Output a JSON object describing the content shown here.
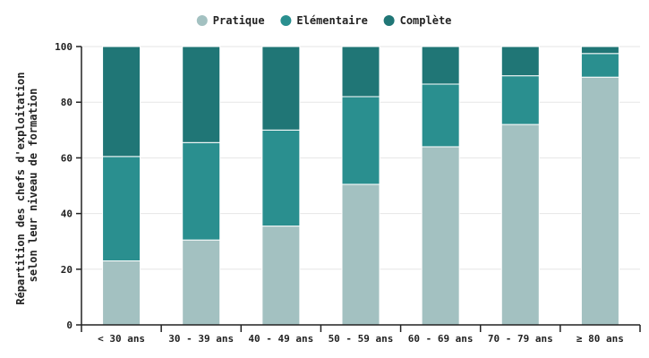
{
  "chart_data": {
    "type": "bar",
    "stacked": true,
    "categories": [
      "< 30 ans",
      "30 - 39 ans",
      "40 - 49 ans",
      "50 - 59 ans",
      "60 - 69 ans",
      "70 - 79 ans",
      "≥ 80 ans"
    ],
    "series": [
      {
        "name": "Pratique",
        "color": "#a3c1c1",
        "values": [
          23,
          30.5,
          35.5,
          50.5,
          64,
          72,
          89
        ]
      },
      {
        "name": "Elémentaire",
        "color": "#2a8f8f",
        "values": [
          37.5,
          35,
          34.5,
          31.5,
          22.5,
          17.5,
          8.5
        ]
      },
      {
        "name": "Complète",
        "color": "#207676",
        "values": [
          39.5,
          34.5,
          30,
          18,
          13.5,
          10.5,
          2.5
        ]
      }
    ],
    "ylabel_line1": "Répartition des chefs d'exploitation",
    "ylabel_line2": "selon leur niveau de formation",
    "yticks": [
      0,
      20,
      40,
      60,
      80,
      100
    ],
    "ylim": [
      0,
      100
    ],
    "grid": true,
    "legend_position": "top-center"
  }
}
